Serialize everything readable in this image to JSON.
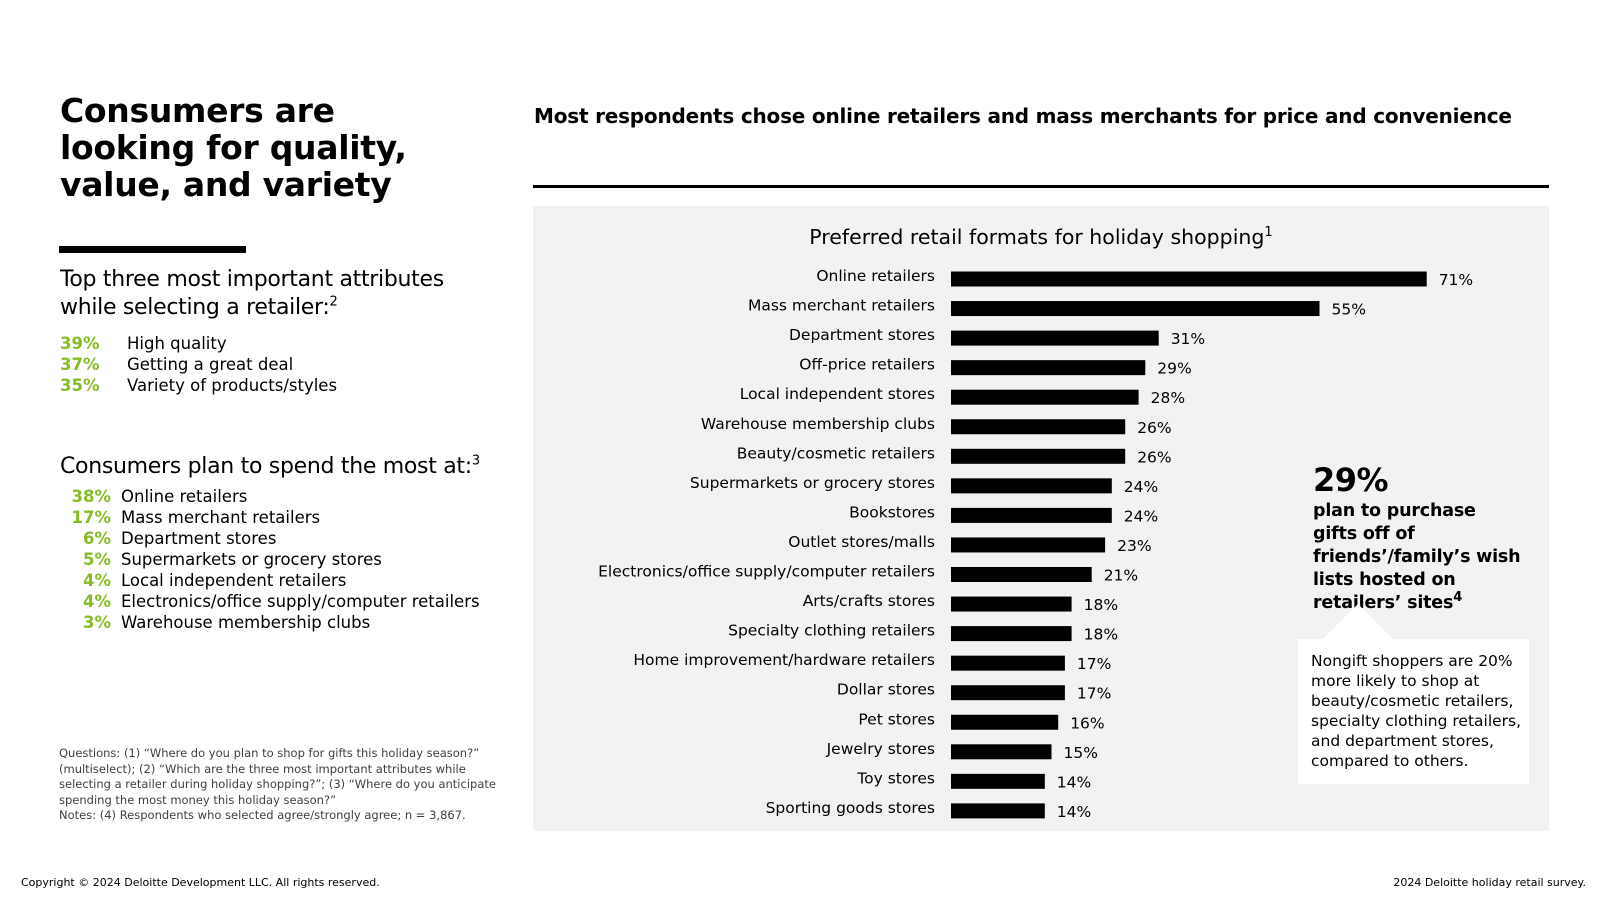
{
  "colors": {
    "accent_green": "#86bc25",
    "bar": "#000000",
    "panel_bg": "#f2f2f2"
  },
  "left": {
    "title": "Consumers are looking for quality, value, and variety",
    "attributes": {
      "heading": "Top three most important attributes while selecting a retailer:",
      "footnote": "2",
      "items": [
        {
          "pct": "39%",
          "label": "High quality"
        },
        {
          "pct": "37%",
          "label": "Getting a great deal"
        },
        {
          "pct": "35%",
          "label": "Variety of products/styles"
        }
      ]
    },
    "spend": {
      "heading": "Consumers plan to spend the most at:",
      "footnote": "3",
      "items": [
        {
          "pct": "38%",
          "label": "Online retailers"
        },
        {
          "pct": "17%",
          "label": "Mass merchant retailers"
        },
        {
          "pct": "6%",
          "label": "Department stores"
        },
        {
          "pct": "5%",
          "label": "Supermarkets or grocery stores"
        },
        {
          "pct": "4%",
          "label": "Local independent retailers"
        },
        {
          "pct": "4%",
          "label": "Electronics/office supply/computer retailers"
        },
        {
          "pct": "3%",
          "label": "Warehouse membership clubs"
        }
      ]
    },
    "questions": "Questions: (1) “Where do you plan to shop for gifts this holiday season?” (multiselect); (2) “Which are the three most important attributes while selecting a retailer during holiday shopping?”; (3) “Where do you anticipate spending the most money this holiday season?”",
    "notes": "Notes: (4) Respondents who selected agree/strongly agree; n = 3,867."
  },
  "right": {
    "subtitle": "Most respondents chose online retailers and mass merchants for price and convenience",
    "stat": {
      "value": "29%",
      "text": "plan to purchase gifts off of friends’/family’s wish lists hosted on retailers’ sites",
      "footnote": "4"
    },
    "callout": "Nongift shoppers are 20% more likely to shop at beauty/cosmetic retailers, specialty clothing retailers, and department stores, compared to others."
  },
  "chart_data": {
    "type": "bar",
    "orientation": "horizontal",
    "title": "Preferred retail formats for holiday shopping",
    "title_footnote": "1",
    "categories": [
      "Online retailers",
      "Mass merchant retailers",
      "Department stores",
      "Off-price retailers",
      "Local independent stores",
      "Warehouse membership clubs",
      "Beauty/cosmetic retailers",
      "Supermarkets or grocery stores",
      "Bookstores",
      "Outlet stores/malls",
      "Electronics/office supply/computer retailers",
      "Arts/crafts stores",
      "Specialty clothing retailers",
      "Home improvement/hardware retailers",
      "Dollar stores",
      "Pet stores",
      "Jewelry stores",
      "Toy stores",
      "Sporting goods stores"
    ],
    "values": [
      71,
      55,
      31,
      29,
      28,
      26,
      26,
      24,
      24,
      23,
      21,
      18,
      18,
      17,
      17,
      16,
      15,
      14,
      14
    ],
    "value_suffix": "%",
    "xlim": [
      0,
      100
    ],
    "grid": false,
    "legend": "none"
  },
  "footer": {
    "copyright": "Copyright © 2024 Deloitte Development LLC. All rights reserved.",
    "source": "2024 Deloitte holiday retail survey."
  }
}
